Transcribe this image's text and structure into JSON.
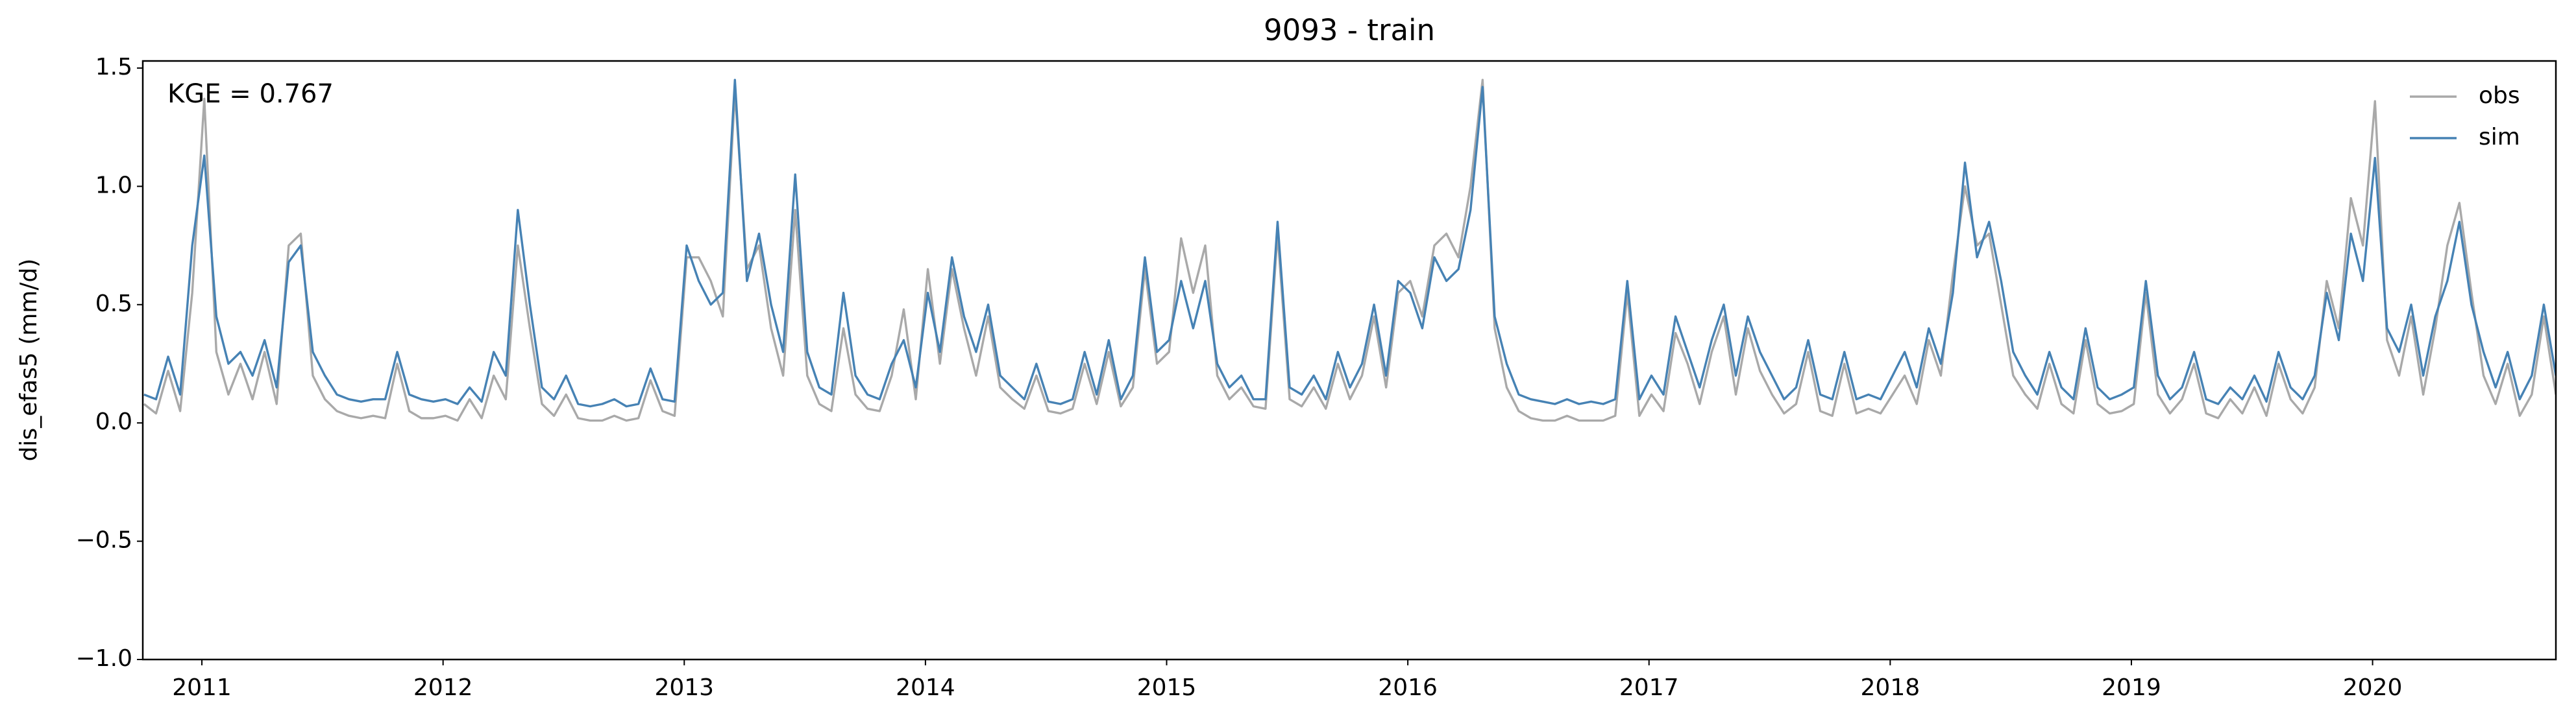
{
  "chart_data": {
    "type": "line",
    "title": "9093 - train",
    "ylabel": "dis_efas5 (mm/d)",
    "annotation": "KGE = 0.767",
    "legend": "upper right",
    "grid": false,
    "xlim": [
      2010.755,
      2020.76
    ],
    "xticks": [
      2011,
      2012,
      2013,
      2014,
      2015,
      2016,
      2017,
      2018,
      2019,
      2020
    ],
    "ylim": [
      -1,
      1.53
    ],
    "yticks": [
      {
        "value": -1,
        "label": "−1.0"
      },
      {
        "value": -0.5,
        "label": "−0.5"
      },
      {
        "value": 0,
        "label": "0.0"
      },
      {
        "value": 0.5,
        "label": "0.5"
      },
      {
        "value": 1,
        "label": "1.0"
      },
      {
        "value": 1.5,
        "label": "1.5"
      }
    ],
    "x": [
      2010.76,
      2010.81,
      2010.86,
      2010.91,
      2010.96,
      2011.01,
      2011.06,
      2011.11,
      2011.16,
      2011.21,
      2011.26,
      2011.31,
      2011.36,
      2011.41,
      2011.46,
      2011.51,
      2011.56,
      2011.61,
      2011.66,
      2011.71,
      2011.76,
      2011.81,
      2011.86,
      2011.91,
      2011.96,
      2012.01,
      2012.06,
      2012.11,
      2012.16,
      2012.21,
      2012.26,
      2012.31,
      2012.36,
      2012.41,
      2012.46,
      2012.51,
      2012.56,
      2012.61,
      2012.66,
      2012.71,
      2012.76,
      2012.81,
      2012.86,
      2012.91,
      2012.96,
      2013.01,
      2013.06,
      2013.11,
      2013.16,
      2013.21,
      2013.26,
      2013.31,
      2013.36,
      2013.41,
      2013.46,
      2013.51,
      2013.56,
      2013.61,
      2013.66,
      2013.71,
      2013.76,
      2013.81,
      2013.86,
      2013.91,
      2013.96,
      2014.01,
      2014.06,
      2014.11,
      2014.16,
      2014.21,
      2014.26,
      2014.31,
      2014.36,
      2014.41,
      2014.46,
      2014.51,
      2014.56,
      2014.61,
      2014.66,
      2014.71,
      2014.76,
      2014.81,
      2014.86,
      2014.91,
      2014.96,
      2015.01,
      2015.06,
      2015.11,
      2015.16,
      2015.21,
      2015.26,
      2015.31,
      2015.36,
      2015.41,
      2015.46,
      2015.51,
      2015.56,
      2015.61,
      2015.66,
      2015.71,
      2015.76,
      2015.81,
      2015.86,
      2015.91,
      2015.96,
      2016.01,
      2016.06,
      2016.11,
      2016.16,
      2016.21,
      2016.26,
      2016.31,
      2016.36,
      2016.41,
      2016.46,
      2016.51,
      2016.56,
      2016.61,
      2016.66,
      2016.71,
      2016.76,
      2016.81,
      2016.86,
      2016.91,
      2016.96,
      2017.01,
      2017.06,
      2017.11,
      2017.16,
      2017.21,
      2017.26,
      2017.31,
      2017.36,
      2017.41,
      2017.46,
      2017.51,
      2017.56,
      2017.61,
      2017.66,
      2017.71,
      2017.76,
      2017.81,
      2017.86,
      2017.91,
      2017.96,
      2018.01,
      2018.06,
      2018.11,
      2018.16,
      2018.21,
      2018.26,
      2018.31,
      2018.36,
      2018.41,
      2018.46,
      2018.51,
      2018.56,
      2018.61,
      2018.66,
      2018.71,
      2018.76,
      2018.81,
      2018.86,
      2018.91,
      2018.96,
      2019.01,
      2019.06,
      2019.11,
      2019.16,
      2019.21,
      2019.26,
      2019.31,
      2019.36,
      2019.41,
      2019.46,
      2019.51,
      2019.56,
      2019.61,
      2019.66,
      2019.71,
      2019.76,
      2019.81,
      2019.86,
      2019.91,
      2019.96,
      2020.01,
      2020.06,
      2020.11,
      2020.16,
      2020.21,
      2020.26,
      2020.31,
      2020.36,
      2020.41,
      2020.46,
      2020.51,
      2020.56,
      2020.61,
      2020.66,
      2020.71,
      2020.76
    ],
    "series": [
      {
        "name": "obs",
        "color": "#a9a9a9",
        "values": [
          0.08,
          0.04,
          0.22,
          0.05,
          0.55,
          1.37,
          0.3,
          0.12,
          0.25,
          0.1,
          0.3,
          0.08,
          0.75,
          0.8,
          0.2,
          0.1,
          0.05,
          0.03,
          0.02,
          0.03,
          0.02,
          0.25,
          0.05,
          0.02,
          0.02,
          0.03,
          0.01,
          0.1,
          0.02,
          0.2,
          0.1,
          0.75,
          0.4,
          0.08,
          0.03,
          0.12,
          0.02,
          0.01,
          0.01,
          0.03,
          0.01,
          0.02,
          0.18,
          0.05,
          0.03,
          0.7,
          0.7,
          0.6,
          0.45,
          1.4,
          0.65,
          0.75,
          0.4,
          0.2,
          0.9,
          0.2,
          0.08,
          0.05,
          0.4,
          0.12,
          0.06,
          0.05,
          0.2,
          0.48,
          0.1,
          0.65,
          0.25,
          0.65,
          0.4,
          0.2,
          0.45,
          0.15,
          0.1,
          0.06,
          0.2,
          0.05,
          0.04,
          0.06,
          0.25,
          0.08,
          0.3,
          0.07,
          0.15,
          0.65,
          0.25,
          0.3,
          0.78,
          0.55,
          0.75,
          0.2,
          0.1,
          0.15,
          0.07,
          0.06,
          0.8,
          0.1,
          0.07,
          0.15,
          0.06,
          0.25,
          0.1,
          0.2,
          0.45,
          0.15,
          0.55,
          0.6,
          0.45,
          0.75,
          0.8,
          0.7,
          1.0,
          1.45,
          0.4,
          0.15,
          0.05,
          0.02,
          0.01,
          0.01,
          0.03,
          0.01,
          0.01,
          0.01,
          0.03,
          0.55,
          0.03,
          0.12,
          0.05,
          0.38,
          0.25,
          0.08,
          0.3,
          0.45,
          0.12,
          0.4,
          0.22,
          0.12,
          0.04,
          0.08,
          0.3,
          0.05,
          0.03,
          0.25,
          0.04,
          0.06,
          0.04,
          0.12,
          0.2,
          0.08,
          0.35,
          0.2,
          0.63,
          1.0,
          0.75,
          0.8,
          0.5,
          0.2,
          0.12,
          0.06,
          0.25,
          0.08,
          0.04,
          0.35,
          0.08,
          0.04,
          0.05,
          0.08,
          0.55,
          0.12,
          0.04,
          0.1,
          0.25,
          0.04,
          0.02,
          0.1,
          0.04,
          0.15,
          0.03,
          0.25,
          0.1,
          0.04,
          0.15,
          0.6,
          0.4,
          0.95,
          0.75,
          1.36,
          0.35,
          0.2,
          0.45,
          0.12,
          0.4,
          0.75,
          0.93,
          0.55,
          0.2,
          0.08,
          0.25,
          0.03,
          0.12,
          0.45,
          0.12
        ]
      },
      {
        "name": "sim",
        "color": "#4682b4",
        "values": [
          0.12,
          0.1,
          0.28,
          0.12,
          0.75,
          1.13,
          0.45,
          0.25,
          0.3,
          0.2,
          0.35,
          0.15,
          0.68,
          0.75,
          0.3,
          0.2,
          0.12,
          0.1,
          0.09,
          0.1,
          0.1,
          0.3,
          0.12,
          0.1,
          0.09,
          0.1,
          0.08,
          0.15,
          0.09,
          0.3,
          0.2,
          0.9,
          0.5,
          0.15,
          0.1,
          0.2,
          0.08,
          0.07,
          0.08,
          0.1,
          0.07,
          0.08,
          0.23,
          0.1,
          0.09,
          0.75,
          0.6,
          0.5,
          0.55,
          1.45,
          0.6,
          0.8,
          0.5,
          0.3,
          1.05,
          0.3,
          0.15,
          0.12,
          0.55,
          0.2,
          0.12,
          0.1,
          0.25,
          0.35,
          0.15,
          0.55,
          0.3,
          0.7,
          0.45,
          0.3,
          0.5,
          0.2,
          0.15,
          0.1,
          0.25,
          0.09,
          0.08,
          0.1,
          0.3,
          0.12,
          0.35,
          0.1,
          0.2,
          0.7,
          0.3,
          0.35,
          0.6,
          0.4,
          0.6,
          0.25,
          0.15,
          0.2,
          0.1,
          0.1,
          0.85,
          0.15,
          0.12,
          0.2,
          0.1,
          0.3,
          0.15,
          0.25,
          0.5,
          0.2,
          0.6,
          0.55,
          0.4,
          0.7,
          0.6,
          0.65,
          0.9,
          1.42,
          0.45,
          0.25,
          0.12,
          0.1,
          0.09,
          0.08,
          0.1,
          0.08,
          0.09,
          0.08,
          0.1,
          0.6,
          0.1,
          0.2,
          0.12,
          0.45,
          0.3,
          0.15,
          0.35,
          0.5,
          0.2,
          0.45,
          0.3,
          0.2,
          0.1,
          0.15,
          0.35,
          0.12,
          0.1,
          0.3,
          0.1,
          0.12,
          0.1,
          0.2,
          0.3,
          0.15,
          0.4,
          0.25,
          0.55,
          1.1,
          0.7,
          0.85,
          0.6,
          0.3,
          0.2,
          0.12,
          0.3,
          0.15,
          0.1,
          0.4,
          0.15,
          0.1,
          0.12,
          0.15,
          0.6,
          0.2,
          0.1,
          0.15,
          0.3,
          0.1,
          0.08,
          0.15,
          0.1,
          0.2,
          0.09,
          0.3,
          0.15,
          0.1,
          0.2,
          0.55,
          0.35,
          0.8,
          0.6,
          1.12,
          0.4,
          0.3,
          0.5,
          0.2,
          0.45,
          0.6,
          0.85,
          0.5,
          0.3,
          0.15,
          0.3,
          0.1,
          0.2,
          0.5,
          0.2
        ]
      }
    ]
  }
}
